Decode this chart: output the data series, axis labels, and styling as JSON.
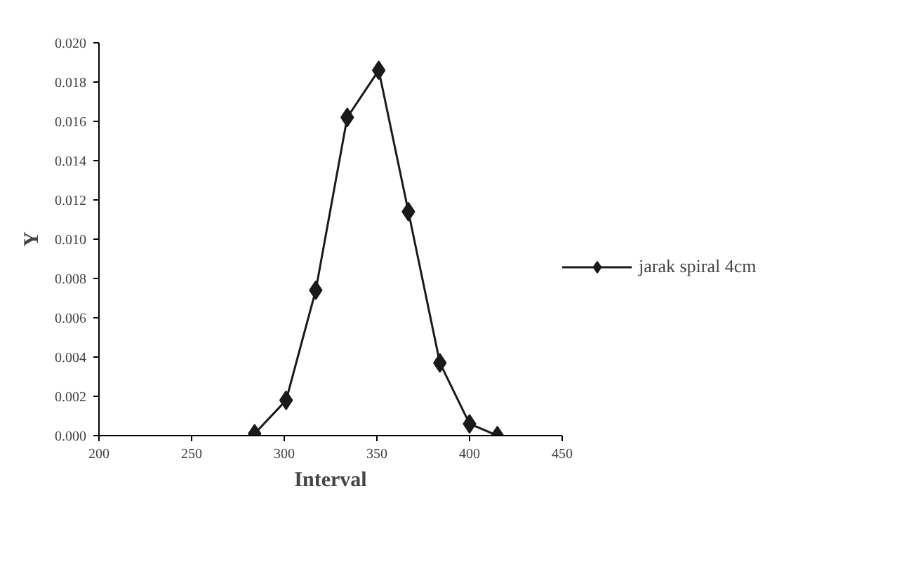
{
  "chart_data": {
    "type": "line",
    "xlabel": "Interval",
    "ylabel": "Y",
    "x": [
      284,
      301,
      317,
      334,
      351,
      367,
      384,
      400,
      415
    ],
    "series": [
      {
        "name": "jarak spiral 4cm",
        "color": "#1a1a1a",
        "values": [
          0.0001,
          0.0018,
          0.0074,
          0.0162,
          0.0186,
          0.0114,
          0.0037,
          0.0006,
          0.0
        ]
      }
    ],
    "xlim": [
      200,
      450
    ],
    "xticks": [
      200,
      250,
      300,
      350,
      400,
      450
    ],
    "ylim": [
      0,
      0.02
    ],
    "yticks": [
      {
        "value": 0,
        "label": "0.000"
      },
      {
        "value": 0.002,
        "label": "0.002"
      },
      {
        "value": 0.004,
        "label": "0.004"
      },
      {
        "value": 0.006,
        "label": "0.006"
      },
      {
        "value": 0.008,
        "label": "0.008"
      },
      {
        "value": 0.01,
        "label": "0.010"
      },
      {
        "value": 0.012,
        "label": "0.012"
      },
      {
        "value": 0.014,
        "label": "0.014"
      },
      {
        "value": 0.016,
        "label": "0.016"
      },
      {
        "value": 0.018,
        "label": "0.018"
      },
      {
        "value": 0.02,
        "label": "0.020"
      }
    ],
    "grid": false,
    "legend": "right",
    "marker": "diamond",
    "line_style": "solid"
  }
}
